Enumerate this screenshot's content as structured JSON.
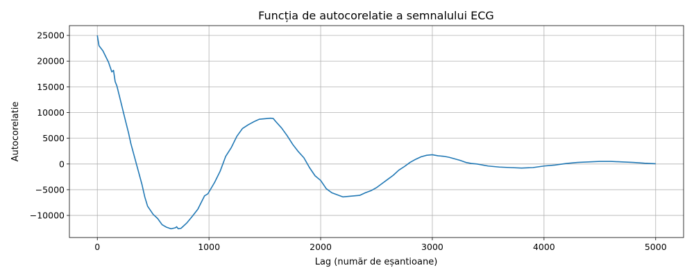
{
  "chart_data": {
    "type": "line",
    "title": "Funcția de autocorelatie a semnalului ECG",
    "xlabel": "Lag (număr de eșantioane)",
    "ylabel": "Autocorelatie",
    "xlim": [
      -250,
      5250
    ],
    "ylim": [
      -14300,
      26900
    ],
    "xticks": [
      0,
      1000,
      2000,
      3000,
      4000,
      5000
    ],
    "yticks": [
      -10000,
      -5000,
      0,
      5000,
      10000,
      15000,
      20000,
      25000
    ],
    "xtick_labels": [
      "0",
      "1000",
      "2000",
      "3000",
      "4000",
      "5000"
    ],
    "ytick_labels": [
      "−10000",
      "−5000",
      "0",
      "5000",
      "10000",
      "15000",
      "20000",
      "25000"
    ],
    "grid": true,
    "line_color": "#1f77b4",
    "series": [
      {
        "x": [
          0,
          15,
          50,
          100,
          130,
          145,
          160,
          175,
          200,
          250,
          280,
          300,
          350,
          400,
          425,
          450,
          500,
          540,
          580,
          620,
          660,
          700,
          710,
          725,
          750,
          800,
          850,
          900,
          960,
          990,
          1050,
          1100,
          1150,
          1200,
          1250,
          1300,
          1350,
          1400,
          1450,
          1500,
          1550,
          1575,
          1600,
          1650,
          1700,
          1750,
          1800,
          1850,
          1900,
          1950,
          2000,
          2050,
          2100,
          2150,
          2200,
          2250,
          2300,
          2350,
          2400,
          2450,
          2500,
          2550,
          2600,
          2650,
          2700,
          2750,
          2800,
          2850,
          2900,
          2950,
          3000,
          3050,
          3100,
          3150,
          3200,
          3250,
          3300,
          3350,
          3400,
          3500,
          3600,
          3700,
          3800,
          3900,
          4000,
          4100,
          4200,
          4300,
          4400,
          4500,
          4600,
          4700,
          4800,
          4900,
          5000
        ],
        "y": [
          25000,
          23000,
          22000,
          19800,
          17900,
          18200,
          16000,
          15200,
          13000,
          8600,
          6000,
          4000,
          0,
          -4000,
          -6400,
          -8200,
          -9800,
          -10600,
          -11800,
          -12300,
          -12600,
          -12400,
          -12200,
          -12600,
          -12500,
          -11500,
          -10200,
          -8800,
          -6200,
          -5800,
          -3600,
          -1400,
          1500,
          3200,
          5400,
          6900,
          7600,
          8200,
          8700,
          8800,
          8900,
          8850,
          8200,
          7000,
          5500,
          3800,
          2400,
          1200,
          -700,
          -2300,
          -3200,
          -4800,
          -5600,
          -6000,
          -6400,
          -6300,
          -6200,
          -6100,
          -5600,
          -5200,
          -4600,
          -3800,
          -3000,
          -2200,
          -1200,
          -500,
          300,
          900,
          1400,
          1700,
          1800,
          1600,
          1500,
          1300,
          1000,
          700,
          300,
          100,
          0,
          -400,
          -600,
          -700,
          -800,
          -700,
          -400,
          -200,
          100,
          300,
          400,
          500,
          500,
          400,
          300,
          150,
          50
        ]
      }
    ]
  }
}
